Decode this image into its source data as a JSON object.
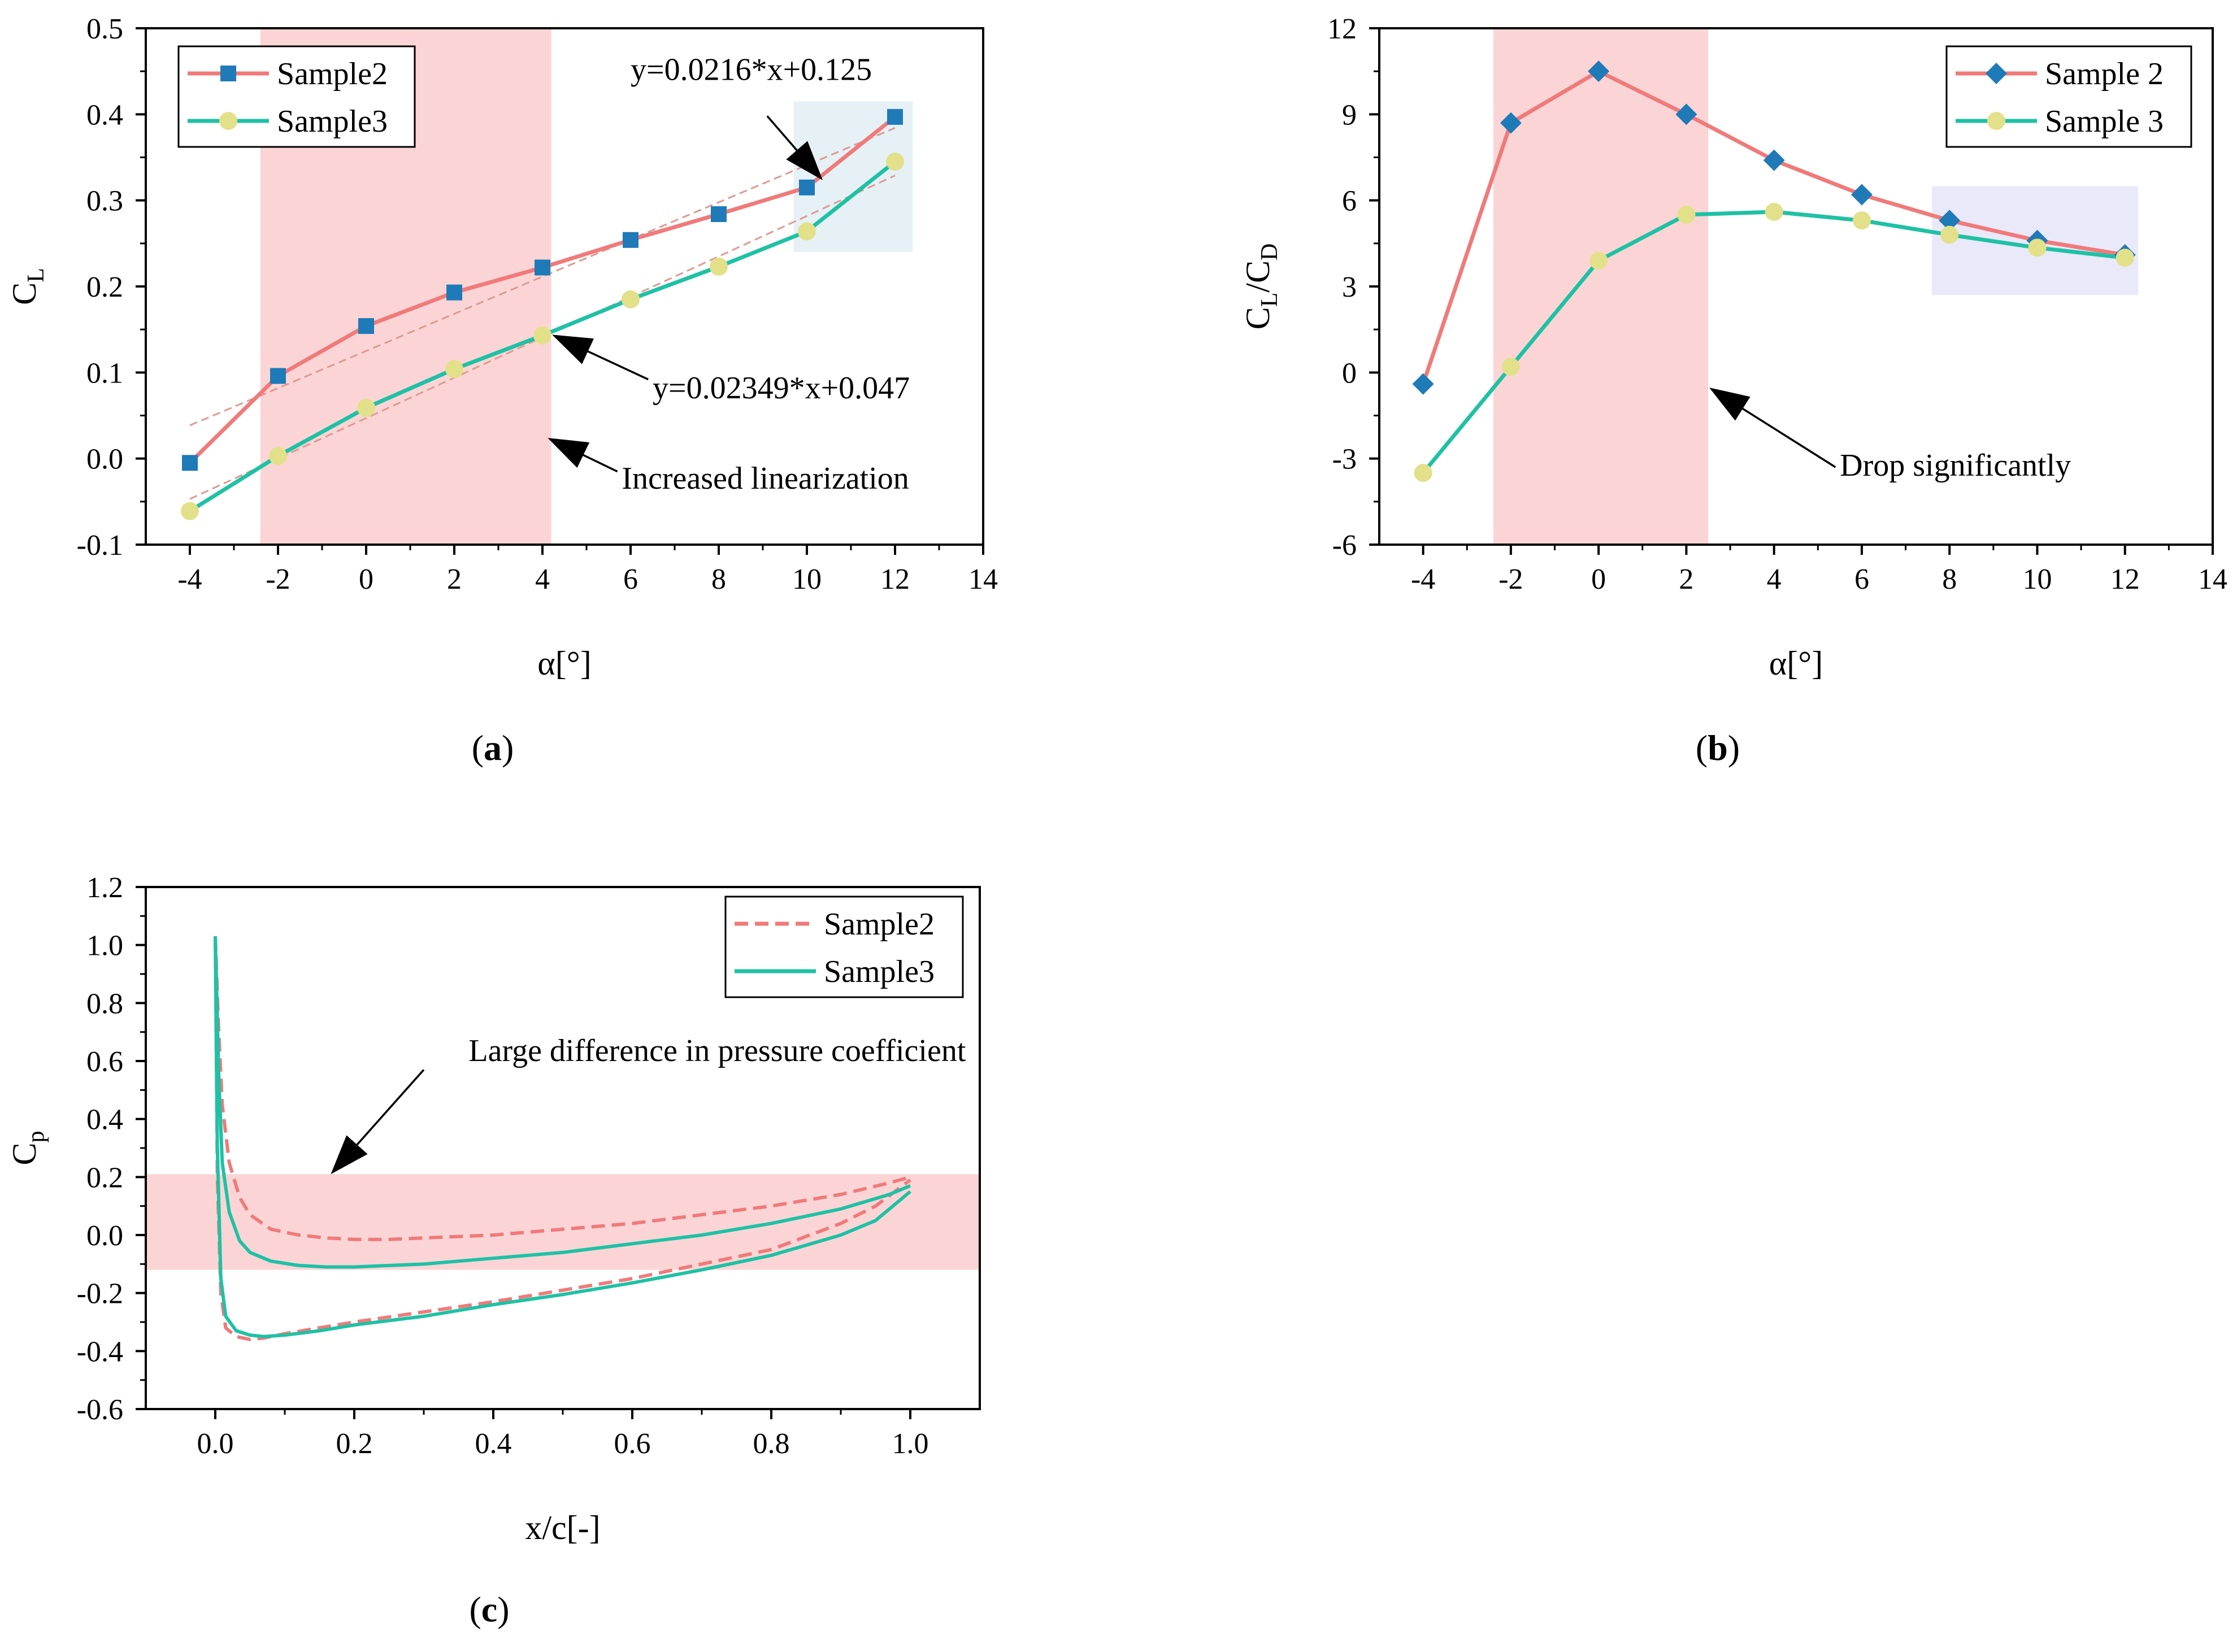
{
  "colors": {
    "sample2": "#F07A7A",
    "sample3": "#1FC1A5",
    "marker2": "#1F7AB8",
    "marker3": "#E3E08A",
    "highlight_pink": "#FBD0D0",
    "highlight_blue": "#E3EFF4",
    "highlight_lavender": "#E7E7F9",
    "trend": "#E0998F",
    "arrow": "#000000"
  },
  "chart_data": [
    {
      "id": "a",
      "panel_label": "a",
      "type": "line",
      "xlabel": "α[°]",
      "ylabel": "C",
      "ylabel_sub": "L",
      "xlim": [
        -5,
        14
      ],
      "ylim": [
        -0.1,
        0.5
      ],
      "xticks": [
        -4,
        -2,
        0,
        2,
        4,
        6,
        8,
        10,
        12,
        14
      ],
      "xtick_labels": [
        "-4",
        "-2",
        "0",
        "2",
        "4",
        "6",
        "8",
        "10",
        "12",
        "14"
      ],
      "yticks": [
        -0.1,
        0.0,
        0.1,
        0.2,
        0.3,
        0.4,
        0.5
      ],
      "ytick_labels": [
        "-0.1",
        "0.0",
        "0.1",
        "0.2",
        "0.3",
        "0.4",
        "0.5"
      ],
      "legend_position": "top-left",
      "x": [
        -4,
        -2,
        0,
        2,
        4,
        6,
        8,
        10,
        12
      ],
      "series": [
        {
          "name": "Sample2",
          "marker": "square",
          "values": [
            -0.005,
            0.096,
            0.154,
            0.193,
            0.222,
            0.254,
            0.284,
            0.315,
            0.397
          ]
        },
        {
          "name": "Sample3",
          "marker": "circle",
          "values": [
            -0.061,
            0.003,
            0.059,
            0.104,
            0.143,
            0.185,
            0.223,
            0.264,
            0.345
          ]
        }
      ],
      "trend_lines": [
        {
          "slope": 0.0216,
          "intercept": 0.125,
          "x_range": [
            -4,
            12
          ]
        },
        {
          "slope": 0.02349,
          "intercept": 0.047,
          "x_range": [
            -4,
            12
          ]
        }
      ],
      "highlights": [
        {
          "x_range": [
            -2.4,
            4.2
          ],
          "y_range": [
            -0.1,
            0.5
          ],
          "color": "highlight_pink"
        },
        {
          "x_range": [
            9.7,
            12.4
          ],
          "y_range": [
            0.24,
            0.415
          ],
          "color": "highlight_blue"
        }
      ],
      "annotations": [
        {
          "text": "y=0.0216*x+0.125",
          "anchor": "start",
          "text_at": [
            6.0,
            0.44
          ],
          "arrow_from": [
            9.1,
            0.398
          ],
          "arrow_to": [
            10.3,
            0.327
          ]
        },
        {
          "text": "y=0.02349*x+0.047",
          "anchor": "start",
          "text_at": [
            6.5,
            0.07
          ],
          "arrow_from": [
            6.4,
            0.092
          ],
          "arrow_to": [
            4.3,
            0.142
          ]
        },
        {
          "text": "Increased linearization",
          "anchor": "start",
          "text_at": [
            5.8,
            -0.035
          ],
          "arrow_from": [
            5.7,
            -0.015
          ],
          "arrow_to": [
            4.2,
            0.022
          ]
        }
      ]
    },
    {
      "id": "b",
      "panel_label": "b",
      "type": "line",
      "xlabel": "α[°]",
      "ylabel": "C",
      "ylabel_sub": "L",
      "ylabel_mid": "/C",
      "ylabel_sub2": "D",
      "xlim": [
        -5,
        14
      ],
      "ylim": [
        -6,
        12
      ],
      "xticks": [
        -4,
        -2,
        0,
        2,
        4,
        6,
        8,
        10,
        12,
        14
      ],
      "xtick_labels": [
        "-4",
        "-2",
        "0",
        "2",
        "4",
        "6",
        "8",
        "10",
        "12",
        "14"
      ],
      "yticks": [
        -6,
        -3,
        0,
        3,
        6,
        9,
        12
      ],
      "ytick_labels": [
        "-6",
        "-3",
        "0",
        "3",
        "6",
        "9",
        "12"
      ],
      "legend_position": "top-right",
      "x": [
        -4,
        -2,
        0,
        2,
        4,
        6,
        8,
        10,
        12
      ],
      "series": [
        {
          "name": "Sample 2",
          "marker": "diamond",
          "values": [
            -0.4,
            8.7,
            10.5,
            9.0,
            7.4,
            6.2,
            5.3,
            4.6,
            4.1
          ]
        },
        {
          "name": "Sample 3",
          "marker": "circle",
          "values": [
            -3.5,
            0.2,
            3.9,
            5.5,
            5.6,
            5.3,
            4.8,
            4.35,
            4.0
          ]
        }
      ],
      "highlights": [
        {
          "x_range": [
            -2.4,
            2.5
          ],
          "y_range": [
            -6,
            12
          ],
          "color": "highlight_pink"
        },
        {
          "x_range": [
            7.6,
            12.3
          ],
          "y_range": [
            2.7,
            6.5
          ],
          "color": "highlight_lavender"
        }
      ],
      "annotations": [
        {
          "text": "Drop significantly",
          "anchor": "start",
          "text_at": [
            5.5,
            -3.6
          ],
          "arrow_from": [
            5.4,
            -3.3
          ],
          "arrow_to": [
            2.6,
            -0.6
          ]
        }
      ]
    },
    {
      "id": "c",
      "panel_label": "c",
      "type": "line",
      "xlabel": "x/c[-]",
      "ylabel": "C",
      "ylabel_sub": "p",
      "xlim": [
        -0.1,
        1.1
      ],
      "ylim": [
        -0.6,
        1.2
      ],
      "xticks": [
        0.0,
        0.2,
        0.4,
        0.6,
        0.8,
        1.0
      ],
      "xtick_labels": [
        "0.0",
        "0.2",
        "0.4",
        "0.6",
        "0.8",
        "1.0"
      ],
      "yticks": [
        -0.6,
        -0.4,
        -0.2,
        0.0,
        0.2,
        0.4,
        0.6,
        0.8,
        1.0,
        1.2
      ],
      "ytick_labels": [
        "-0.6",
        "-0.4",
        "-0.2",
        "0.0",
        "0.2",
        "0.4",
        "0.6",
        "0.8",
        "1.0",
        "1.2"
      ],
      "legend_position": "top-right",
      "series": [
        {
          "name": "Sample2",
          "dash": true,
          "upper": {
            "x": [
              0.0,
              0.005,
              0.01,
              0.02,
              0.035,
              0.05,
              0.08,
              0.12,
              0.16,
              0.2,
              0.25,
              0.3,
              0.4,
              0.5,
              0.6,
              0.7,
              0.8,
              0.9,
              0.97,
              1.0
            ],
            "y": [
              1.03,
              0.7,
              0.45,
              0.25,
              0.13,
              0.07,
              0.02,
              0.0,
              -0.01,
              -0.015,
              -0.015,
              -0.01,
              0.0,
              0.02,
              0.04,
              0.07,
              0.1,
              0.14,
              0.18,
              0.2
            ]
          },
          "lower": {
            "x": [
              0.0,
              0.003,
              0.008,
              0.015,
              0.03,
              0.05,
              0.07,
              0.1,
              0.15,
              0.2,
              0.3,
              0.4,
              0.5,
              0.6,
              0.7,
              0.8,
              0.9,
              0.95,
              1.0
            ],
            "y": [
              1.03,
              0.2,
              -0.2,
              -0.32,
              -0.35,
              -0.36,
              -0.355,
              -0.34,
              -0.32,
              -0.3,
              -0.265,
              -0.23,
              -0.19,
              -0.15,
              -0.1,
              -0.05,
              0.04,
              0.1,
              0.19
            ]
          }
        },
        {
          "name": "Sample3",
          "dash": false,
          "upper": {
            "x": [
              0.0,
              0.005,
              0.01,
              0.02,
              0.035,
              0.05,
              0.08,
              0.12,
              0.16,
              0.2,
              0.25,
              0.3,
              0.4,
              0.5,
              0.6,
              0.7,
              0.8,
              0.9,
              0.97,
              1.0
            ],
            "y": [
              1.03,
              0.55,
              0.25,
              0.08,
              -0.02,
              -0.06,
              -0.09,
              -0.105,
              -0.11,
              -0.11,
              -0.105,
              -0.1,
              -0.08,
              -0.06,
              -0.03,
              0.0,
              0.04,
              0.09,
              0.14,
              0.17
            ]
          },
          "lower": {
            "x": [
              0.0,
              0.003,
              0.008,
              0.015,
              0.03,
              0.05,
              0.07,
              0.1,
              0.15,
              0.2,
              0.3,
              0.4,
              0.5,
              0.6,
              0.7,
              0.8,
              0.9,
              0.95,
              1.0
            ],
            "y": [
              1.03,
              0.3,
              -0.15,
              -0.28,
              -0.33,
              -0.345,
              -0.35,
              -0.345,
              -0.33,
              -0.31,
              -0.28,
              -0.24,
              -0.205,
              -0.165,
              -0.12,
              -0.07,
              0.0,
              0.05,
              0.15
            ]
          }
        }
      ],
      "highlights": [
        {
          "x_range": [
            -0.1,
            1.1
          ],
          "y_range": [
            -0.12,
            0.21
          ],
          "color": "highlight_pink"
        }
      ],
      "annotations": [
        {
          "text": "Large difference in pressure coefficient",
          "anchor": "end",
          "text_at": [
            1.08,
            0.6
          ],
          "arrow_from": [
            0.3,
            0.57
          ],
          "arrow_to": [
            0.17,
            0.22
          ]
        }
      ]
    }
  ]
}
